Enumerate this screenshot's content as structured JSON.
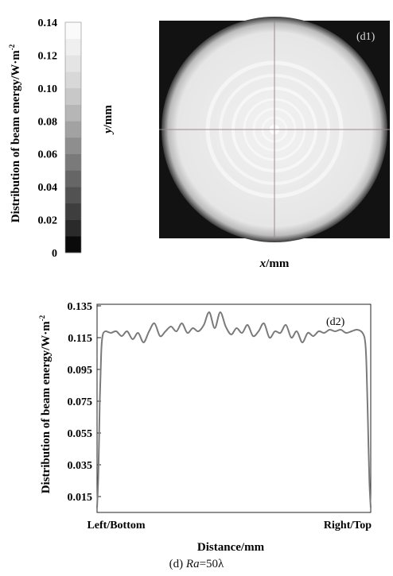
{
  "colorbar": {
    "ylabel": "Distribution of beam energy/W·m",
    "ylabel_sup": "-2",
    "ticks": [
      "0",
      "0.02",
      "0.04",
      "0.06",
      "0.08",
      "0.10",
      "0.12",
      "0.14"
    ],
    "tick_values": [
      0,
      0.02,
      0.04,
      0.06,
      0.08,
      0.1,
      0.12,
      0.14
    ],
    "colors": [
      "#0a0a0a",
      "#2a2a2a",
      "#3e3e3e",
      "#525252",
      "#666666",
      "#7a7a7a",
      "#8e8e8e",
      "#a2a2a2",
      "#b6b6b6",
      "#c8c8c8",
      "#d8d8d8",
      "#e4e4e4",
      "#efefef",
      "#fafafa"
    ]
  },
  "map": {
    "label": "(d1)",
    "ylabel": "y/mm",
    "ylabel_italic": "y",
    "ylabel_unit": "/mm",
    "xlabel_italic": "x",
    "xlabel_unit": "/mm",
    "background": "#121212",
    "disk_color": "#e8e8e8",
    "ring_color": "#f6f6f6"
  },
  "chart_data": {
    "type": "line",
    "label": "(d2)",
    "ylabel": "Distribution of beam energy/W·m",
    "ylabel_sup": "-2",
    "xlabel": "Distance/mm",
    "x_ticks": [
      "Left/Bottom",
      "Right/Top"
    ],
    "y_ticks": [
      0.015,
      0.035,
      0.055,
      0.075,
      0.095,
      0.115,
      0.135
    ],
    "y_tick_labels": [
      "0.015",
      "0.035",
      "0.055",
      "0.075",
      "0.095",
      "0.115",
      "0.135"
    ],
    "ylim": [
      0.005,
      0.136
    ],
    "xlim": [
      0,
      1
    ],
    "line_color": "#7a7a7a",
    "series": [
      {
        "x": [
          0,
          0.005,
          0.01,
          0.015,
          0.02,
          0.03,
          0.05,
          0.07,
          0.09,
          0.11,
          0.13,
          0.15,
          0.17,
          0.19,
          0.21,
          0.23,
          0.25,
          0.27,
          0.29,
          0.31,
          0.33,
          0.35,
          0.37,
          0.39,
          0.41,
          0.43,
          0.45,
          0.47,
          0.49,
          0.51,
          0.53,
          0.55,
          0.57,
          0.59,
          0.61,
          0.63,
          0.65,
          0.67,
          0.69,
          0.71,
          0.73,
          0.75,
          0.77,
          0.79,
          0.81,
          0.83,
          0.85,
          0.87,
          0.89,
          0.91,
          0.93,
          0.95,
          0.97,
          0.98,
          0.985,
          0.99,
          0.995,
          1.0
        ],
        "y": [
          0.008,
          0.03,
          0.075,
          0.105,
          0.116,
          0.119,
          0.118,
          0.119,
          0.116,
          0.119,
          0.114,
          0.118,
          0.112,
          0.119,
          0.124,
          0.116,
          0.119,
          0.122,
          0.119,
          0.124,
          0.118,
          0.121,
          0.119,
          0.123,
          0.131,
          0.121,
          0.131,
          0.122,
          0.117,
          0.121,
          0.118,
          0.123,
          0.116,
          0.119,
          0.124,
          0.115,
          0.119,
          0.118,
          0.123,
          0.115,
          0.119,
          0.112,
          0.118,
          0.116,
          0.119,
          0.118,
          0.12,
          0.119,
          0.12,
          0.118,
          0.119,
          0.12,
          0.118,
          0.112,
          0.095,
          0.06,
          0.025,
          0.008
        ]
      }
    ]
  },
  "caption": {
    "prefix": "(d) ",
    "ra": "Ra",
    "suffix": "=50λ"
  }
}
